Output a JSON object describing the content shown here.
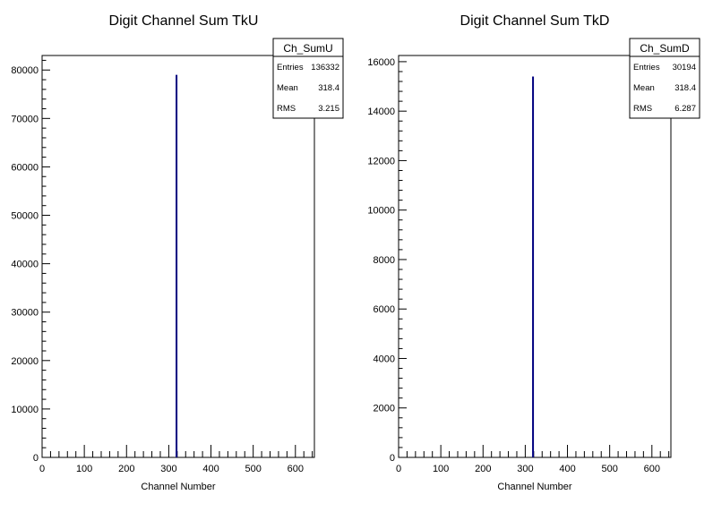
{
  "chart_data": [
    {
      "type": "bar",
      "title": "Digit Channel Sum TkU",
      "xlabel": "Channel Number",
      "ylabel": "",
      "xlim": [
        0,
        645
      ],
      "ylim": [
        0,
        83000
      ],
      "xticks": [
        0,
        100,
        200,
        300,
        400,
        500,
        600
      ],
      "yticks": [
        0,
        10000,
        20000,
        30000,
        40000,
        50000,
        60000,
        70000,
        80000
      ],
      "bins": [
        {
          "x": 318.4,
          "value": 79000
        }
      ],
      "color": "#00007f",
      "grid": false,
      "legend_position": "top-right",
      "stats": {
        "name": "Ch_SumU",
        "rows": [
          {
            "label": "Entries",
            "value": "136332"
          },
          {
            "label": "Mean",
            "value": "318.4"
          },
          {
            "label": "RMS",
            "value": "3.215"
          }
        ]
      }
    },
    {
      "type": "bar",
      "title": "Digit Channel Sum TkD",
      "xlabel": "Channel Number",
      "ylabel": "",
      "xlim": [
        0,
        645
      ],
      "ylim": [
        0,
        16250
      ],
      "xticks": [
        0,
        100,
        200,
        300,
        400,
        500,
        600
      ],
      "yticks": [
        0,
        2000,
        4000,
        6000,
        8000,
        10000,
        12000,
        14000,
        16000
      ],
      "bins": [
        {
          "x": 318.4,
          "value": 15400
        }
      ],
      "color": "#00007f",
      "grid": false,
      "legend_position": "top-right",
      "stats": {
        "name": "Ch_SumD",
        "rows": [
          {
            "label": "Entries",
            "value": "30194"
          },
          {
            "label": "Mean",
            "value": "318.4"
          },
          {
            "label": "RMS",
            "value": "6.287"
          }
        ]
      }
    }
  ]
}
